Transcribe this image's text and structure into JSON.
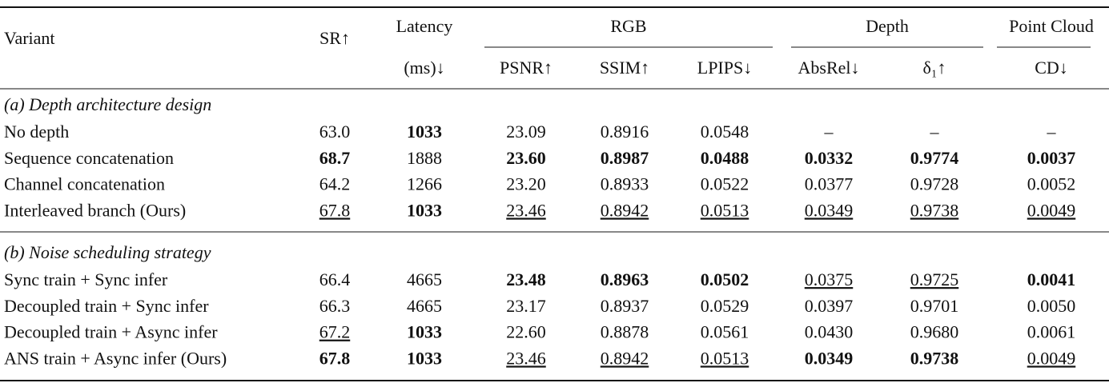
{
  "table": {
    "header": {
      "variant": "Variant",
      "sr": "SR↑",
      "latency": [
        "Latency",
        "(ms)↓"
      ],
      "groups": [
        {
          "label": "RGB",
          "columns": [
            "PSNR↑",
            "SSIM↑",
            "LPIPS↓"
          ]
        },
        {
          "label": "Depth",
          "columns": [
            "AbsRel↓",
            "δ₁↑"
          ]
        },
        {
          "label": "Point Cloud",
          "columns": [
            "CD↓"
          ]
        }
      ]
    },
    "sections": [
      {
        "title": "(a) Depth architecture design",
        "rows": [
          {
            "cells": [
              "No depth",
              "63.0",
              "1033",
              "23.09",
              "0.8916",
              "0.0548",
              "–",
              "–",
              "–"
            ],
            "bold": [
              2
            ]
          },
          {
            "cells": [
              "Sequence concatenation",
              "68.7",
              "1888",
              "23.60",
              "0.8987",
              "0.0488",
              "0.0332",
              "0.9774",
              "0.0037"
            ],
            "bold": [
              1,
              3,
              4,
              5,
              6,
              7,
              8
            ]
          },
          {
            "cells": [
              "Channel concatenation",
              "64.2",
              "1266",
              "23.20",
              "0.8933",
              "0.0522",
              "0.0377",
              "0.9728",
              "0.0052"
            ]
          },
          {
            "cells": [
              "Interleaved branch (Ours)",
              "67.8",
              "1033",
              "23.46",
              "0.8942",
              "0.0513",
              "0.0349",
              "0.9738",
              "0.0049"
            ],
            "bold": [
              2
            ],
            "underline": [
              1,
              3,
              4,
              5,
              6,
              7,
              8
            ]
          }
        ]
      },
      {
        "title": "(b) Noise scheduling strategy",
        "rows": [
          {
            "cells": [
              "Sync train + Sync infer",
              "66.4",
              "4665",
              "23.48",
              "0.8963",
              "0.0502",
              "0.0375",
              "0.9725",
              "0.0041"
            ],
            "bold": [
              3,
              4,
              5,
              8
            ],
            "underline": [
              6,
              7
            ]
          },
          {
            "cells": [
              "Decoupled train + Sync infer",
              "66.3",
              "4665",
              "23.17",
              "0.8937",
              "0.0529",
              "0.0397",
              "0.9701",
              "0.0050"
            ]
          },
          {
            "cells": [
              "Decoupled train + Async infer",
              "67.2",
              "1033",
              "22.60",
              "0.8878",
              "0.0561",
              "0.0430",
              "0.9680",
              "0.0061"
            ],
            "bold": [
              2
            ],
            "underline": [
              1
            ]
          },
          {
            "cells": [
              "ANS train + Async infer (Ours)",
              "67.8",
              "1033",
              "23.46",
              "0.8942",
              "0.0513",
              "0.0349",
              "0.9738",
              "0.0049"
            ],
            "bold": [
              1,
              2,
              6,
              7
            ],
            "underline": [
              3,
              4,
              5,
              8
            ]
          }
        ]
      }
    ]
  }
}
